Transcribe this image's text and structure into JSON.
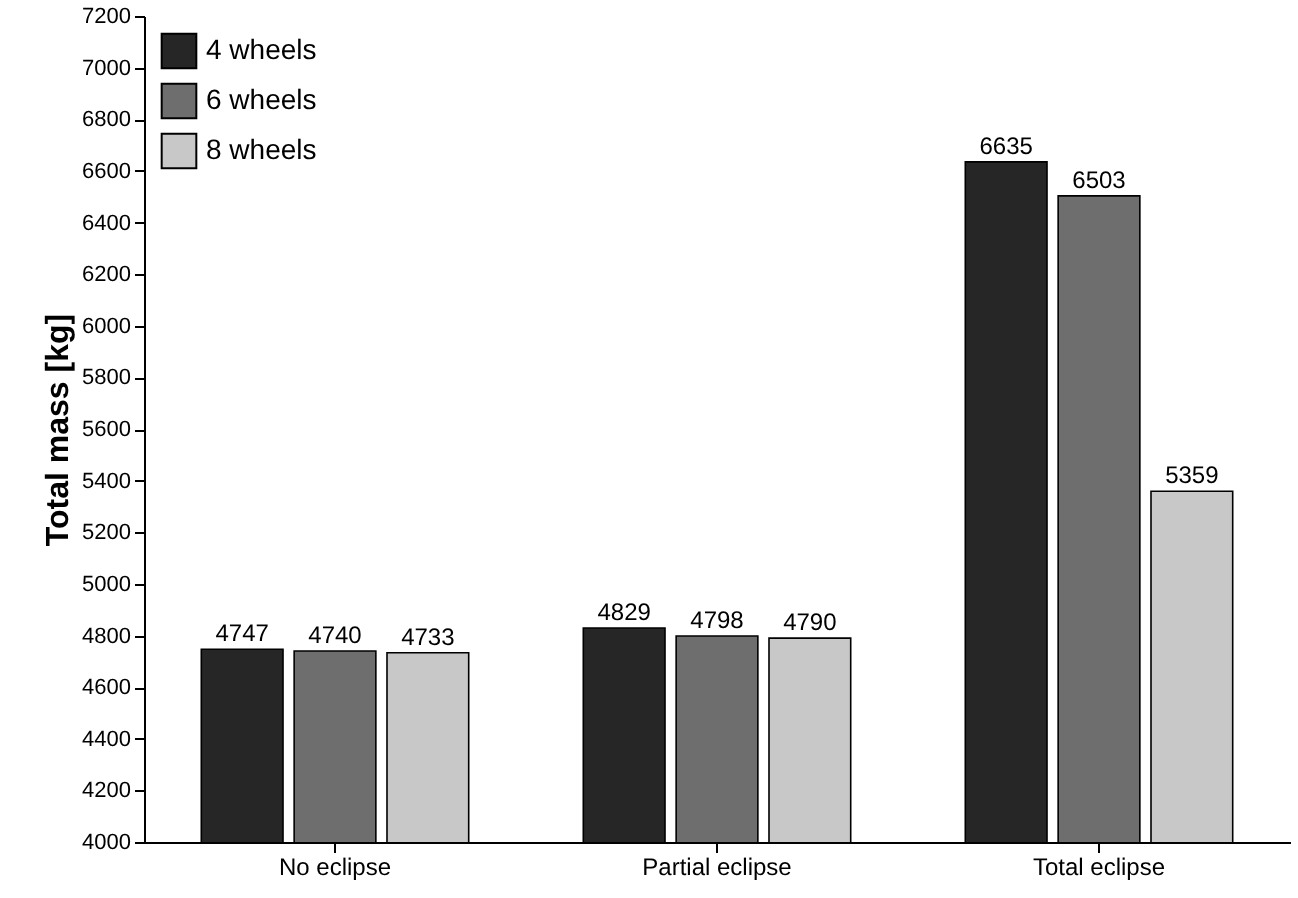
{
  "chart_data": {
    "type": "bar",
    "ylabel": "Total mass [kg]",
    "categories": [
      "No eclipse",
      "Partial eclipse",
      "Total eclipse"
    ],
    "series": [
      {
        "name": "4 wheels",
        "color": "#262626",
        "values": [
          4747,
          4829,
          6635
        ]
      },
      {
        "name": "6 wheels",
        "color": "#6e6e6e",
        "values": [
          4740,
          4798,
          6503
        ]
      },
      {
        "name": "8 wheels",
        "color": "#c8c8c8",
        "values": [
          4733,
          4790,
          5359
        ]
      }
    ],
    "ylim": [
      4000,
      7200
    ],
    "yticks": [
      4000,
      4200,
      4400,
      4600,
      4800,
      5000,
      5200,
      5400,
      5600,
      5800,
      6000,
      6200,
      6400,
      6600,
      6800,
      7000,
      7200
    ],
    "data_labels": true,
    "legend": "top left",
    "grid": false
  }
}
